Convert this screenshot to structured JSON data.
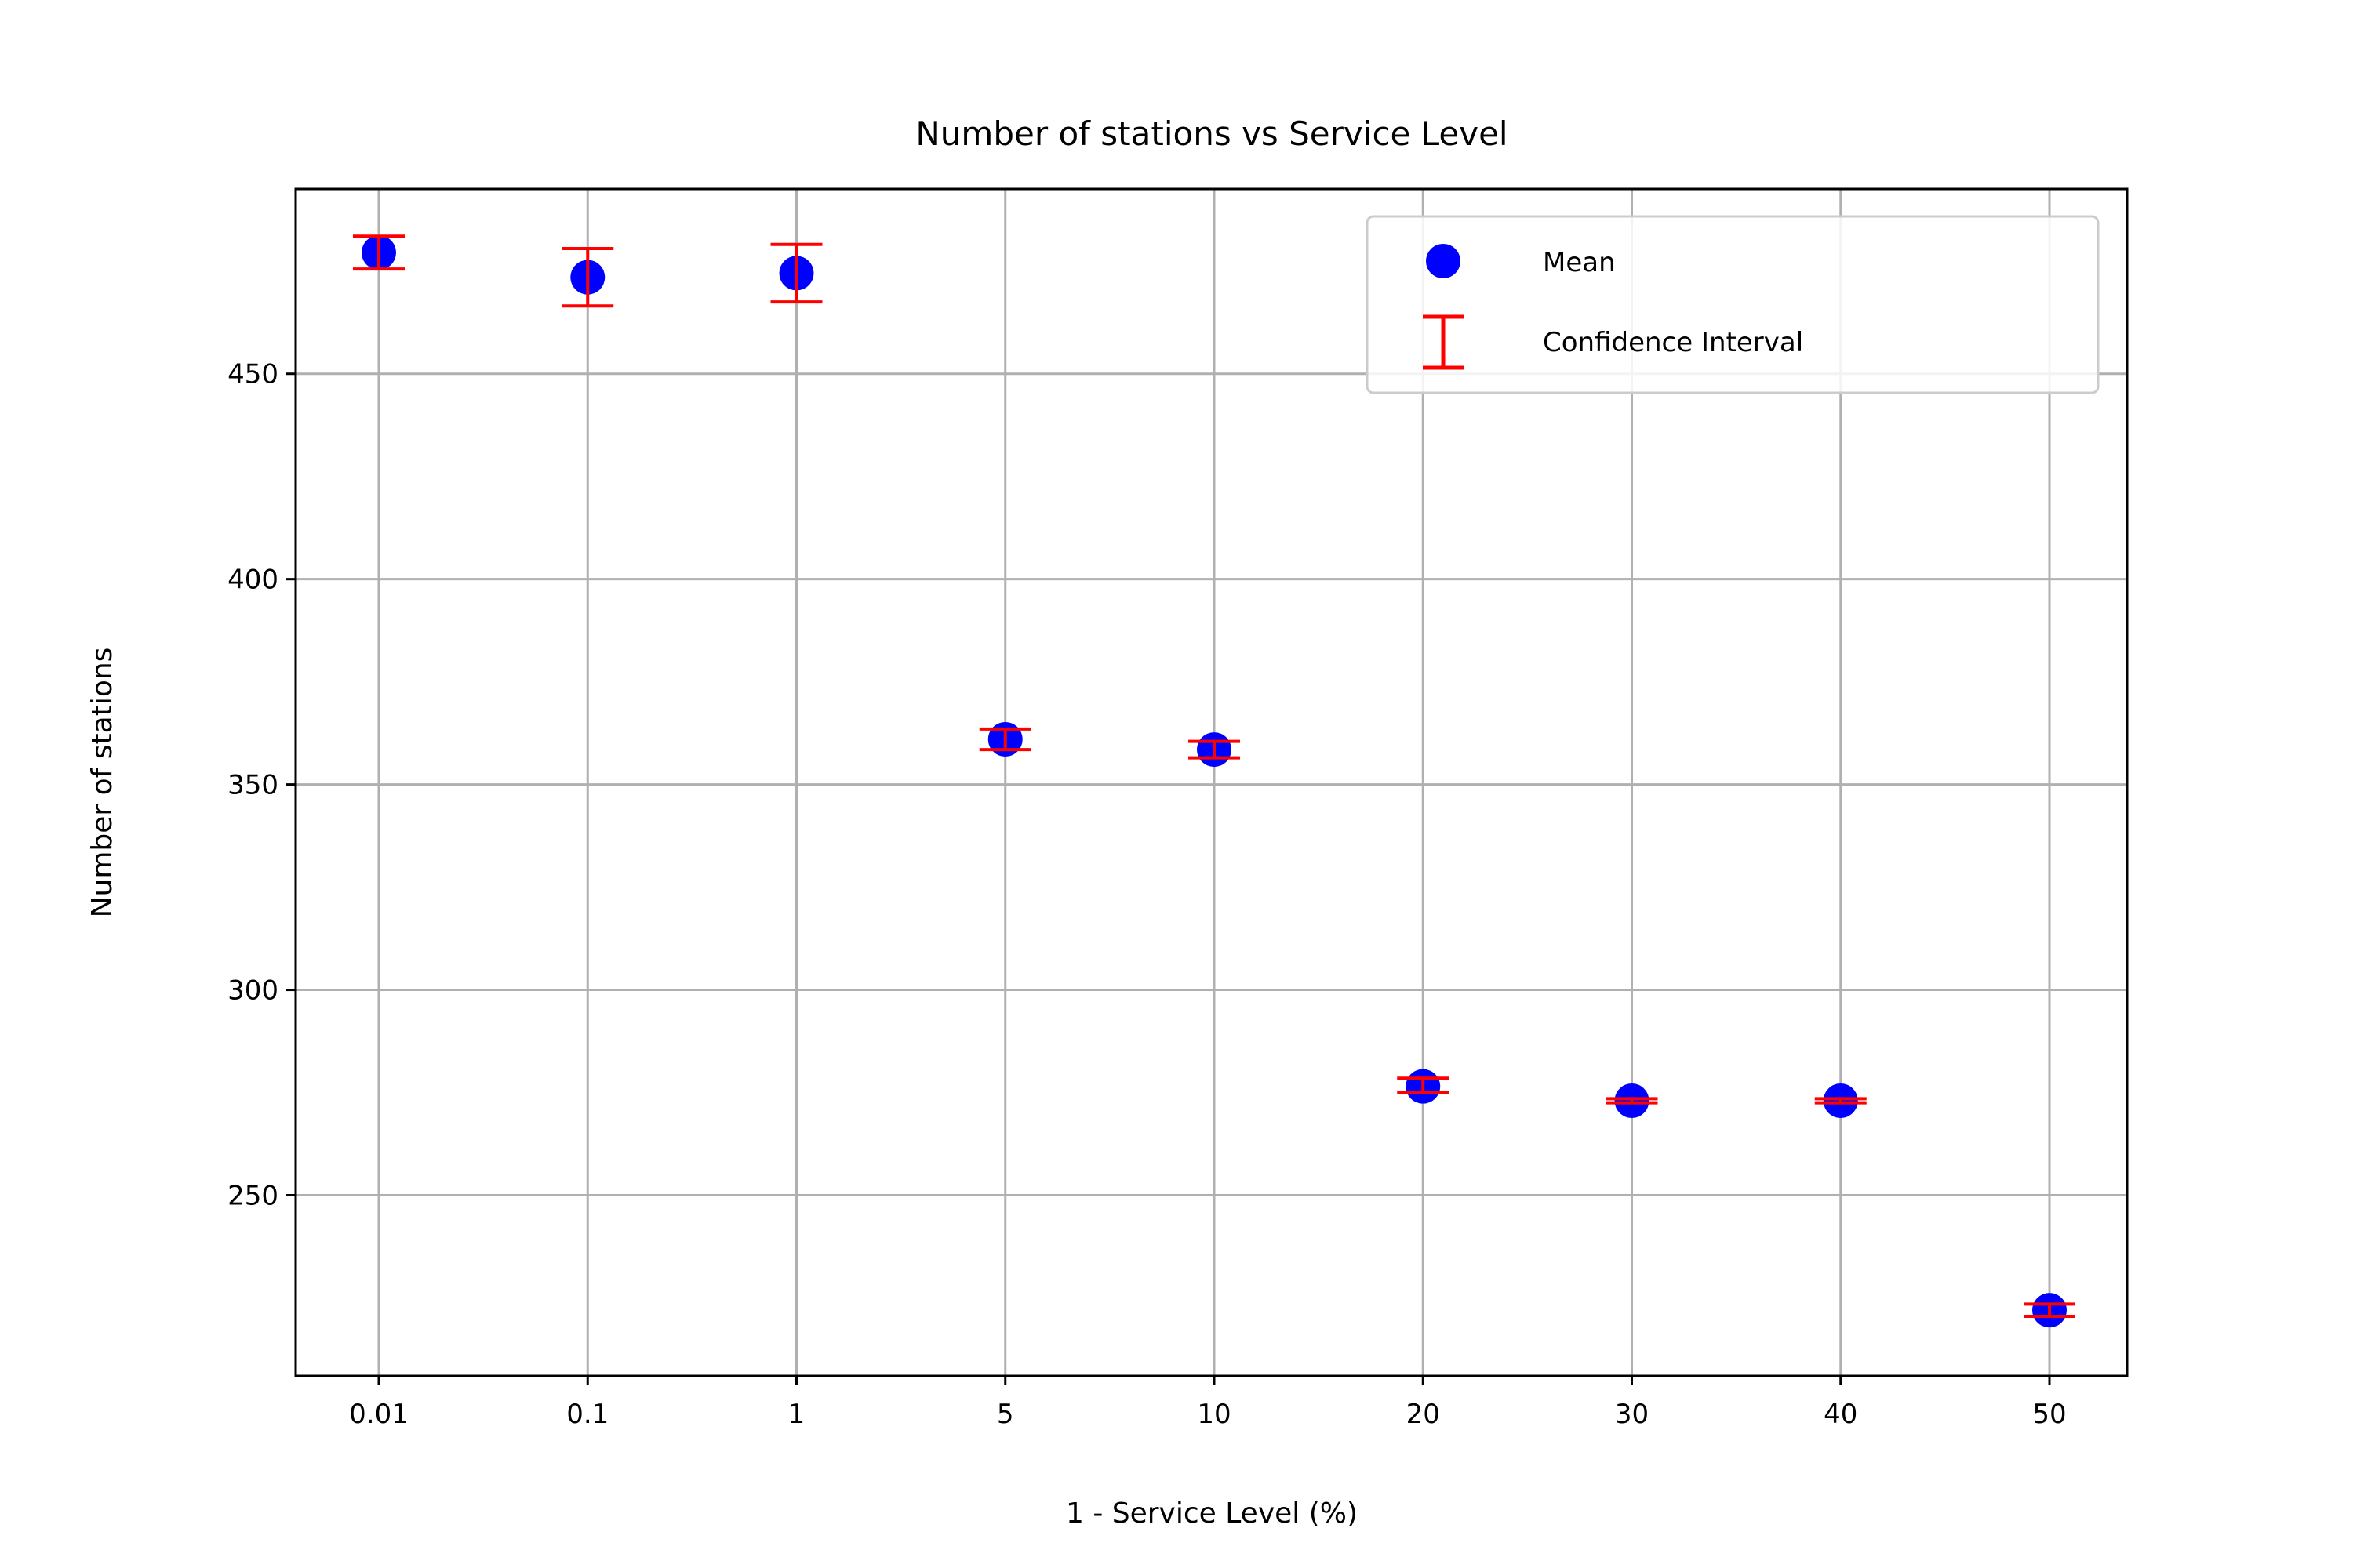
{
  "chart_data": {
    "type": "scatter",
    "title": "Number of stations vs Service Level",
    "xlabel": "1 - Service Level (%)",
    "ylabel": "Number of stations",
    "categories": [
      "0.01",
      "0.1",
      "1",
      "5",
      "10",
      "20",
      "30",
      "40",
      "50"
    ],
    "series": [
      {
        "name": "Mean",
        "kind": "marker",
        "color": "#0000ff",
        "values": [
          479.5,
          473.5,
          474.5,
          361,
          358.5,
          276.5,
          273,
          273,
          222
        ]
      },
      {
        "name": "Confidence Interval",
        "kind": "errorbar",
        "color": "#ff0000",
        "lower": [
          475.5,
          466.5,
          467.5,
          358.5,
          356.5,
          275,
          272.5,
          272.5,
          220.5
        ],
        "upper": [
          483.5,
          480.5,
          481.5,
          363.5,
          360.5,
          278.5,
          273.5,
          273.5,
          223.5
        ]
      }
    ],
    "yticks": [
      250,
      300,
      350,
      400,
      450
    ],
    "ylim": [
      206,
      495
    ],
    "grid": true,
    "legend_position": "top-right"
  }
}
